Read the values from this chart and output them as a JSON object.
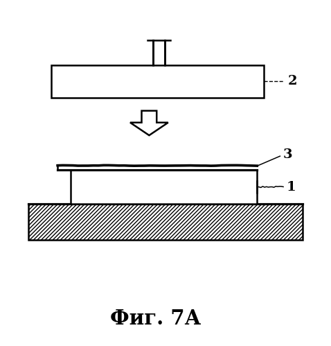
{
  "title": "Фиг. 7А",
  "background_color": "#ffffff",
  "label_2": "2",
  "label_3": "3",
  "label_1": "1",
  "fig_width": 4.78,
  "fig_height": 4.99,
  "dpi": 100
}
